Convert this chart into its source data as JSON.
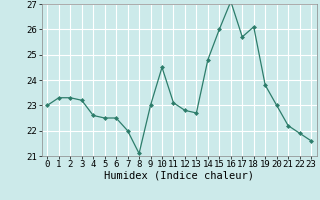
{
  "x": [
    0,
    1,
    2,
    3,
    4,
    5,
    6,
    7,
    8,
    9,
    10,
    11,
    12,
    13,
    14,
    15,
    16,
    17,
    18,
    19,
    20,
    21,
    22,
    23
  ],
  "y": [
    23.0,
    23.3,
    23.3,
    23.2,
    22.6,
    22.5,
    22.5,
    22.0,
    21.1,
    23.0,
    24.5,
    23.1,
    22.8,
    22.7,
    24.8,
    26.0,
    27.1,
    25.7,
    26.1,
    23.8,
    23.0,
    22.2,
    21.9,
    21.6
  ],
  "xlabel": "Humidex (Indice chaleur)",
  "ylim": [
    21,
    27
  ],
  "xlim": [
    -0.5,
    23.5
  ],
  "yticks": [
    21,
    22,
    23,
    24,
    25,
    26,
    27
  ],
  "xticks": [
    0,
    1,
    2,
    3,
    4,
    5,
    6,
    7,
    8,
    9,
    10,
    11,
    12,
    13,
    14,
    15,
    16,
    17,
    18,
    19,
    20,
    21,
    22,
    23
  ],
  "line_color": "#2d7d6b",
  "marker": "D",
  "marker_size": 2.0,
  "background_color": "#cceaea",
  "grid_color": "#ffffff",
  "axis_fontsize": 7,
  "tick_fontsize": 6.5,
  "xlabel_fontsize": 7.5
}
